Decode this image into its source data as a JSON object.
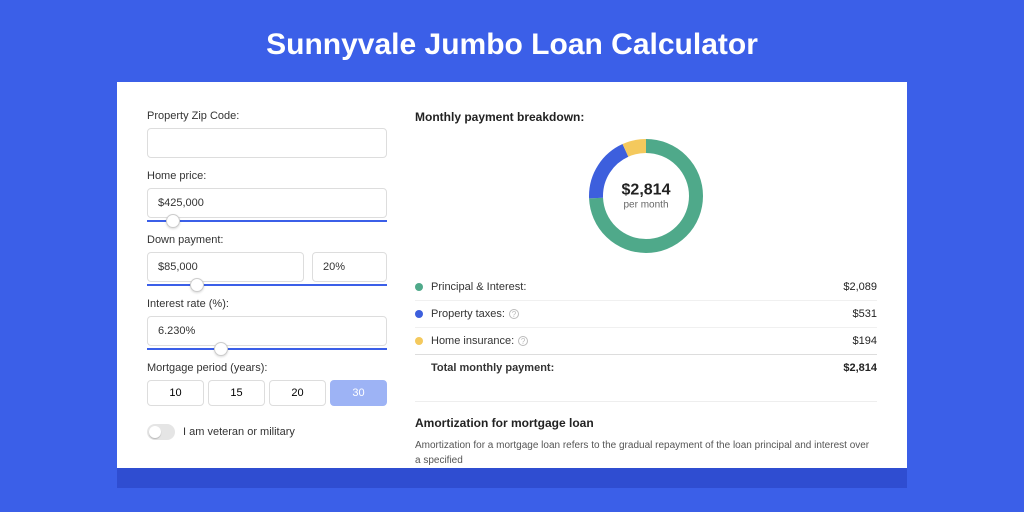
{
  "page": {
    "title": "Sunnyvale Jumbo Loan Calculator",
    "background_color": "#3b5fe8"
  },
  "form": {
    "zip": {
      "label": "Property Zip Code:",
      "value": ""
    },
    "home_price": {
      "label": "Home price:",
      "value": "$425,000",
      "slider_percent": 8
    },
    "down_payment": {
      "label": "Down payment:",
      "value": "$85,000",
      "percent_value": "20%",
      "slider_percent": 18
    },
    "interest_rate": {
      "label": "Interest rate (%):",
      "value": "6.230%",
      "slider_percent": 28
    },
    "mortgage_period": {
      "label": "Mortgage period (years):",
      "options": [
        "10",
        "15",
        "20",
        "30"
      ],
      "selected_index": 3
    },
    "veteran": {
      "label": "I am veteran or military",
      "on": false
    }
  },
  "breakdown": {
    "title": "Monthly payment breakdown:",
    "center_amount": "$2,814",
    "center_sub": "per month",
    "donut": {
      "slices": [
        {
          "color": "#4fa98a",
          "fraction": 0.742
        },
        {
          "color": "#3d5fdd",
          "fraction": 0.189
        },
        {
          "color": "#f4c95d",
          "fraction": 0.069
        }
      ],
      "radius": 50,
      "stroke_width": 14
    },
    "items": [
      {
        "label": "Principal & Interest:",
        "value": "$2,089",
        "color": "#4fa98a",
        "info": false
      },
      {
        "label": "Property taxes:",
        "value": "$531",
        "color": "#3d5fdd",
        "info": true
      },
      {
        "label": "Home insurance:",
        "value": "$194",
        "color": "#f4c95d",
        "info": true
      }
    ],
    "total": {
      "label": "Total monthly payment:",
      "value": "$2,814"
    }
  },
  "amortization": {
    "title": "Amortization for mortgage loan",
    "body": "Amortization for a mortgage loan refers to the gradual repayment of the loan principal and interest over a specified"
  }
}
